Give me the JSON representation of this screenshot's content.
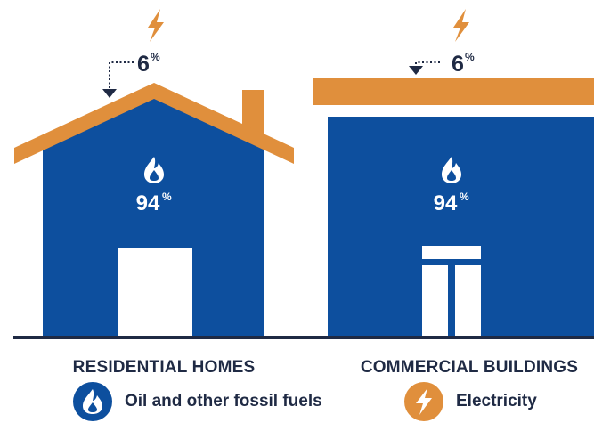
{
  "colors": {
    "fossil_blue": "#0d4f9e",
    "electric_orange": "#e08f3c",
    "ground_navy": "#1f2a44",
    "text_navy": "#1f2a44"
  },
  "diagram": {
    "residential": {
      "caption": "RESIDENTIAL HOMES",
      "fossil_value": "94",
      "fossil_unit": "%",
      "electric_value": "6",
      "electric_unit": "%"
    },
    "commercial": {
      "caption": "COMMERCIAL BUILDINGS",
      "fossil_value": "94",
      "fossil_unit": "%",
      "electric_value": "6",
      "electric_unit": "%"
    }
  },
  "legend": {
    "items": [
      {
        "icon": "flame-icon",
        "label": "Oil and other fossil fuels",
        "color": "#0d4f9e"
      },
      {
        "icon": "lightning-bolt-icon",
        "label": "Electricity",
        "color": "#e08f3c"
      }
    ]
  }
}
